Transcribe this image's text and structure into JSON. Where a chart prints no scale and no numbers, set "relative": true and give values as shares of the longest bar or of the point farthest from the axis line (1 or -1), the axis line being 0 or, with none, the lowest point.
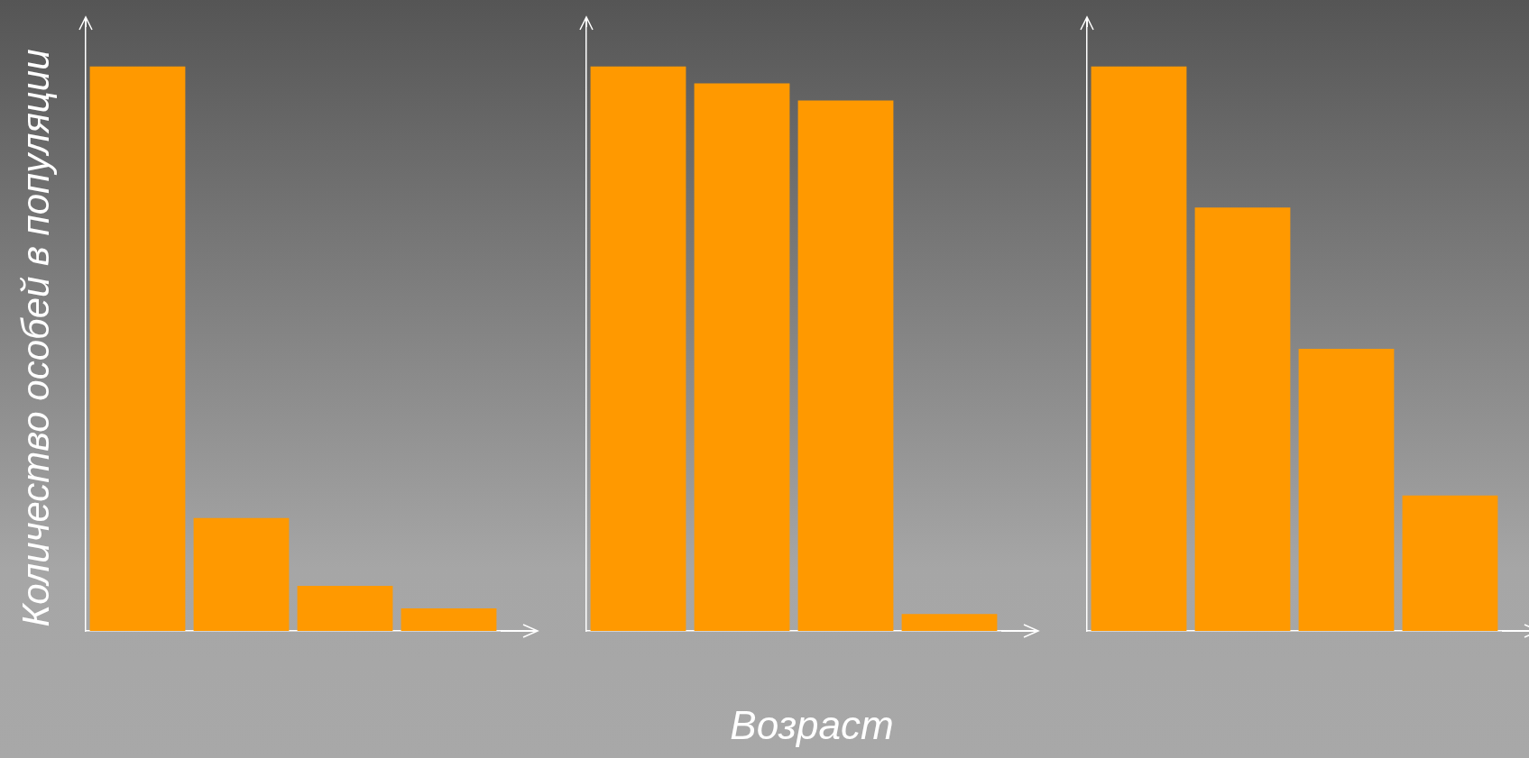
{
  "chart_data": [
    {
      "type": "bar",
      "relative": true,
      "ylabel": "Количество особей в популяции",
      "categories": [
        null,
        null,
        null,
        null
      ],
      "values": [
        1,
        0.2,
        0.08,
        0.04
      ],
      "color": "#ff9900"
    },
    {
      "type": "bar",
      "relative": true,
      "xlabel": "Возраст",
      "categories": [
        null,
        null,
        null,
        null
      ],
      "values": [
        1,
        0.97,
        0.94,
        0.03
      ],
      "color": "#ff9900"
    },
    {
      "type": "bar",
      "relative": true,
      "categories": [
        null,
        null,
        null,
        null
      ],
      "values": [
        1,
        0.75,
        0.5,
        0.24
      ],
      "color": "#ff9900"
    }
  ]
}
